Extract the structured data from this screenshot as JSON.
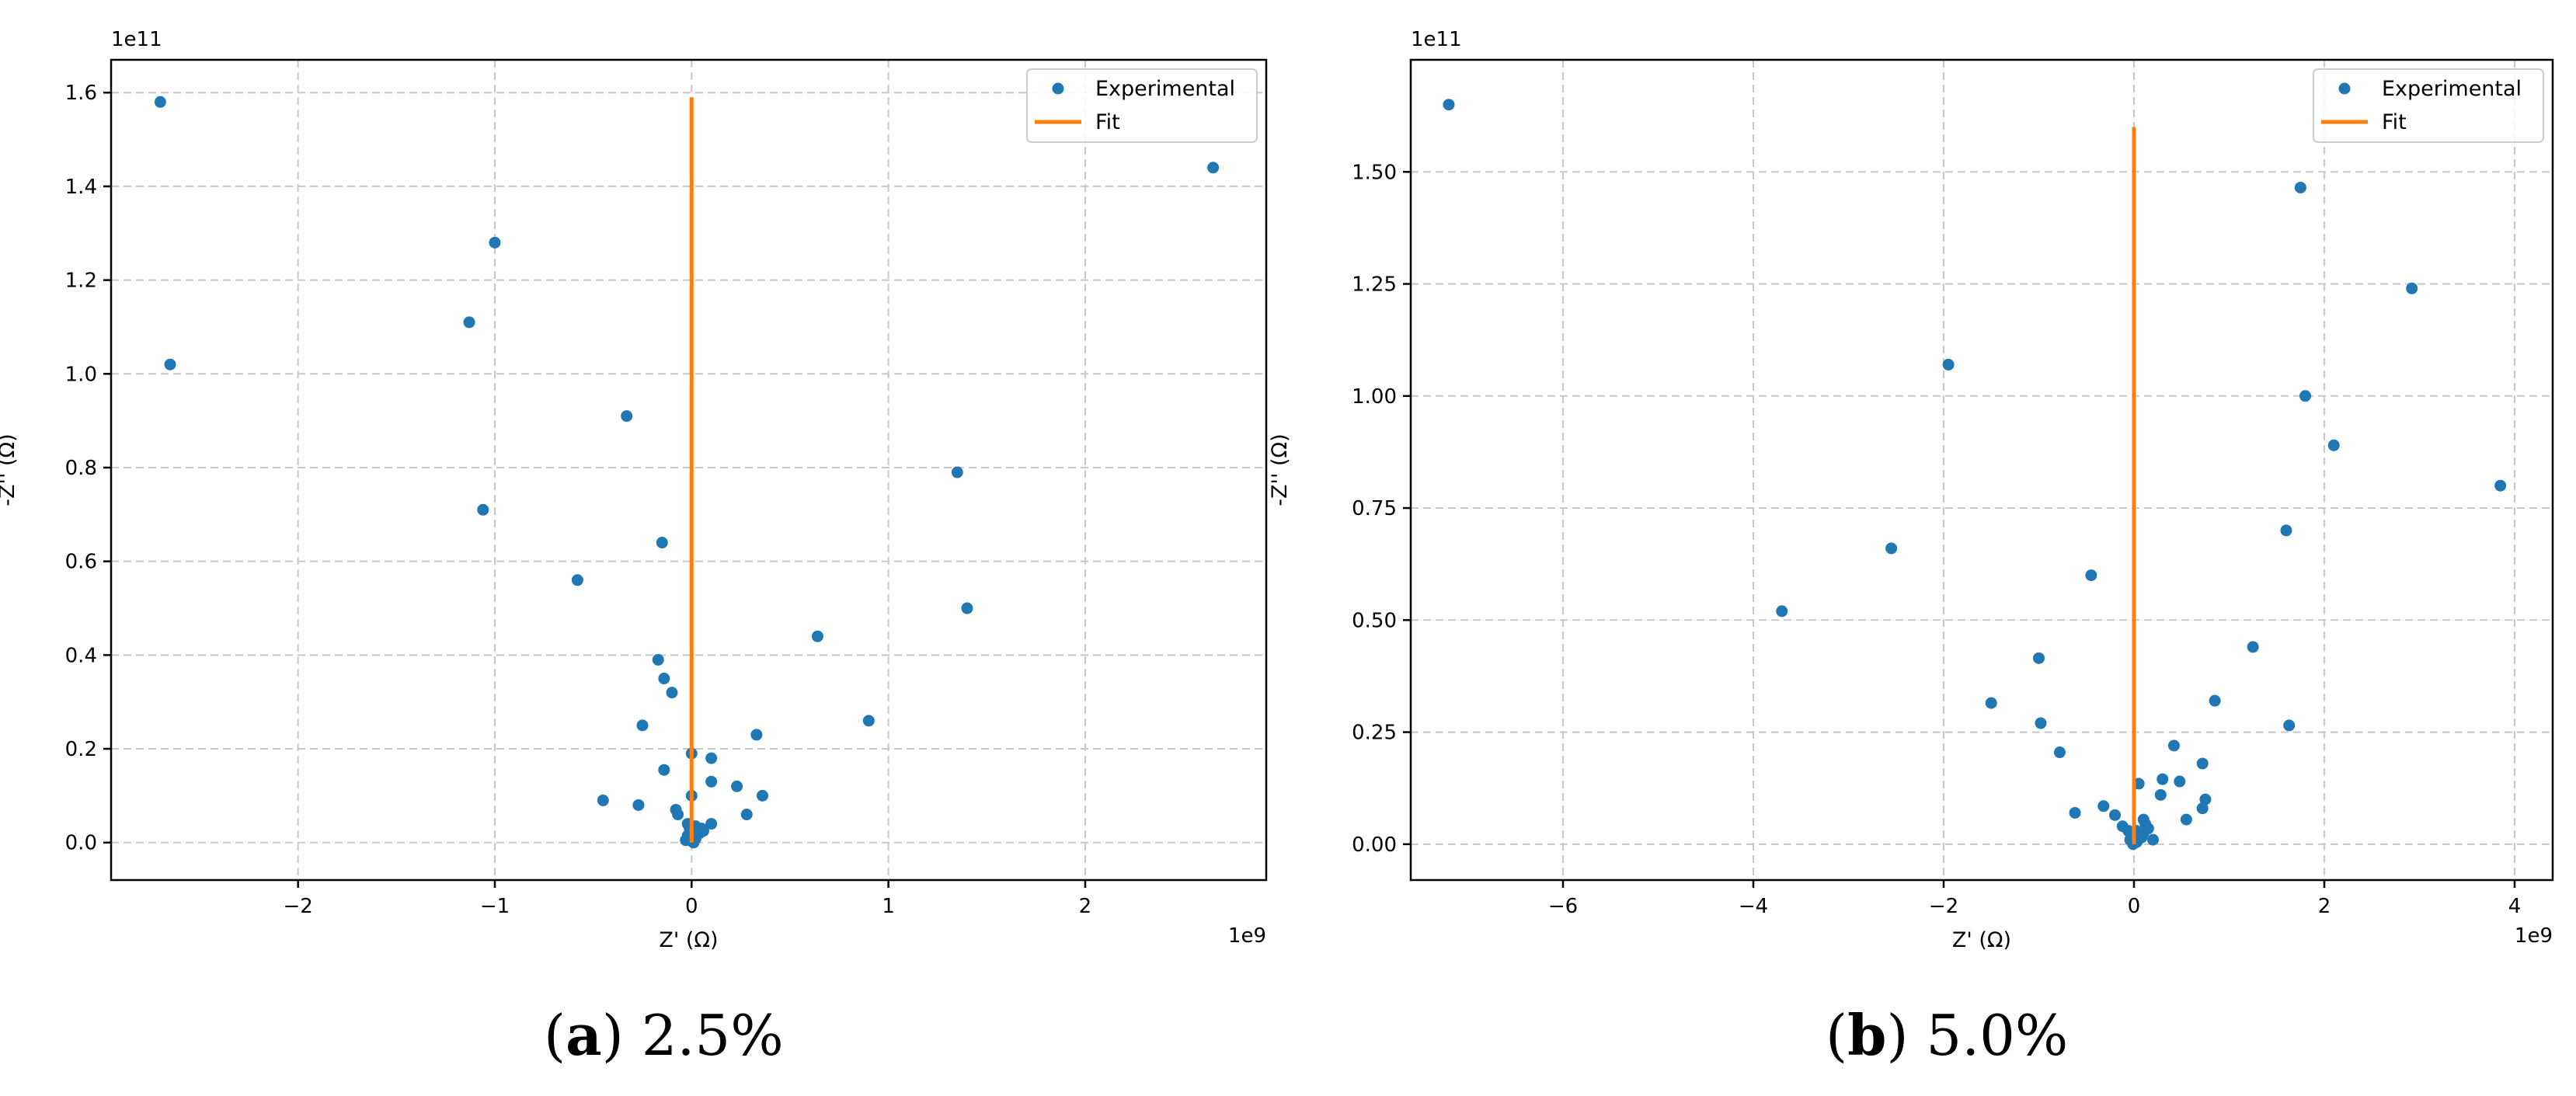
{
  "chart_data": [
    {
      "type": "scatter",
      "panel_label": "a",
      "caption": "2.5%",
      "xlabel": "Z' (Ω)",
      "ylabel": "-Z'' (Ω)",
      "x_offset_label": "1e9",
      "y_offset_label": "1e11",
      "xlim": [
        -2.95,
        2.92
      ],
      "ylim": [
        -0.08,
        1.67
      ],
      "xticks": [
        -2,
        -1,
        0,
        1,
        2
      ],
      "xtick_labels": [
        "−2",
        "−1",
        "0",
        "1",
        "2"
      ],
      "yticks": [
        0.0,
        0.2,
        0.4,
        0.6,
        0.8,
        1.0,
        1.2,
        1.4,
        1.6
      ],
      "ytick_labels": [
        "0.0",
        "0.2",
        "0.4",
        "0.6",
        "0.8",
        "1.0",
        "1.2",
        "1.4",
        "1.6"
      ],
      "grid": true,
      "legend_position": "top-right",
      "series": [
        {
          "name": "Experimental",
          "kind": "points",
          "color": "#1f77b4",
          "x": [
            -2.7,
            -2.65,
            2.65,
            -1.0,
            -1.13,
            -0.33,
            1.35,
            -1.06,
            -0.15,
            -0.58,
            1.4,
            0.64,
            -0.17,
            -0.14,
            -0.1,
            0.9,
            -0.25,
            0.33,
            0.0,
            -0.14,
            0.1,
            0.1,
            0.23,
            0.36,
            -0.45,
            -0.27,
            -0.08,
            -0.07,
            0.28,
            0.1,
            0.05,
            0.0,
            -0.02,
            0.02,
            -0.01,
            0.01,
            0.03,
            0.0,
            -0.02,
            0.0,
            0.01,
            0.02,
            -0.01,
            0.04,
            0.0,
            0.06,
            -0.03,
            0.02,
            0.0,
            0.01
          ],
          "y": [
            1.58,
            1.02,
            1.44,
            1.28,
            1.11,
            0.91,
            0.79,
            0.71,
            0.64,
            0.56,
            0.5,
            0.44,
            0.39,
            0.35,
            0.32,
            0.26,
            0.25,
            0.23,
            0.19,
            0.155,
            0.18,
            0.13,
            0.12,
            0.1,
            0.09,
            0.08,
            0.07,
            0.06,
            0.06,
            0.04,
            0.03,
            0.1,
            0.04,
            0.035,
            0.03,
            0.025,
            0.03,
            0.02,
            0.015,
            0.015,
            0.01,
            0.02,
            0.01,
            0.02,
            0.005,
            0.025,
            0.005,
            0.008,
            0.003,
            0.0
          ]
        },
        {
          "name": "Fit",
          "kind": "line",
          "color": "#ff7f0e",
          "x": [
            0.0,
            0.0
          ],
          "y": [
            0.0,
            1.59
          ]
        }
      ]
    },
    {
      "type": "scatter",
      "panel_label": "b",
      "caption": "5.0%",
      "xlabel": "Z' (Ω)",
      "ylabel": "-Z'' (Ω)",
      "x_offset_label": "1e9",
      "y_offset_label": "1e11",
      "xlim": [
        -7.6,
        4.4
      ],
      "ylim": [
        -0.08,
        1.75
      ],
      "xticks": [
        -6,
        -4,
        -2,
        0,
        2,
        4
      ],
      "xtick_labels": [
        "−6",
        "−4",
        "−2",
        "0",
        "2",
        "4"
      ],
      "yticks": [
        0.0,
        0.25,
        0.5,
        0.75,
        1.0,
        1.25,
        1.5
      ],
      "ytick_labels": [
        "0.00",
        "0.25",
        "0.50",
        "0.75",
        "1.00",
        "1.25",
        "1.50"
      ],
      "grid": true,
      "legend_position": "top-right",
      "series": [
        {
          "name": "Experimental",
          "kind": "points",
          "color": "#1f77b4",
          "x": [
            -7.2,
            1.75,
            2.92,
            -1.95,
            1.8,
            2.1,
            3.85,
            1.6,
            -2.55,
            -0.45,
            -3.7,
            1.25,
            -1.0,
            0.85,
            -1.5,
            -0.98,
            1.63,
            0.42,
            -0.78,
            0.72,
            0.05,
            0.3,
            0.48,
            0.28,
            0.75,
            0.72,
            -0.32,
            -0.62,
            0.55,
            -0.2,
            0.1,
            0.12,
            -0.12,
            0.15,
            -0.06,
            0.02,
            -0.02,
            0.05,
            0.0,
            0.08,
            -0.04,
            0.03,
            0.01,
            -0.01,
            0.2,
            0.1
          ],
          "y": [
            1.65,
            1.465,
            1.24,
            1.07,
            1.0,
            0.89,
            0.8,
            0.7,
            0.66,
            0.6,
            0.52,
            0.44,
            0.415,
            0.32,
            0.315,
            0.27,
            0.265,
            0.22,
            0.205,
            0.18,
            0.135,
            0.145,
            0.14,
            0.11,
            0.1,
            0.08,
            0.085,
            0.07,
            0.055,
            0.065,
            0.055,
            0.045,
            0.04,
            0.035,
            0.03,
            0.03,
            0.02,
            0.02,
            0.01,
            0.015,
            0.01,
            0.005,
            0.005,
            0.0,
            0.01,
            0.025
          ]
        },
        {
          "name": "Fit",
          "kind": "line",
          "color": "#ff7f0e",
          "x": [
            0.0,
            0.0
          ],
          "y": [
            0.0,
            1.6
          ]
        }
      ]
    }
  ]
}
